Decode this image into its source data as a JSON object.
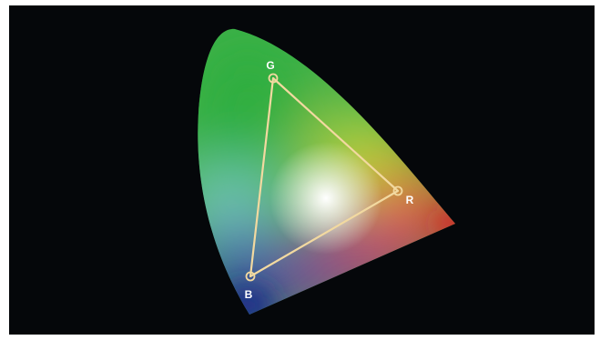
{
  "gamut_diagram": {
    "vertices": {
      "green": {
        "label": "G"
      },
      "red": {
        "label": "R"
      },
      "blue": {
        "label": "B"
      }
    },
    "colors": {
      "background": "#05070a",
      "triangle_outline": "#f2d9a0",
      "green_region": "#43b24a",
      "red_region": "#e8262a",
      "blue_region": "#2a3aa6",
      "magenta_region": "#d0287a",
      "yellow_region": "#f5e63a",
      "cyan_region": "#8fd8e8",
      "white_point": "#ffffff"
    }
  }
}
